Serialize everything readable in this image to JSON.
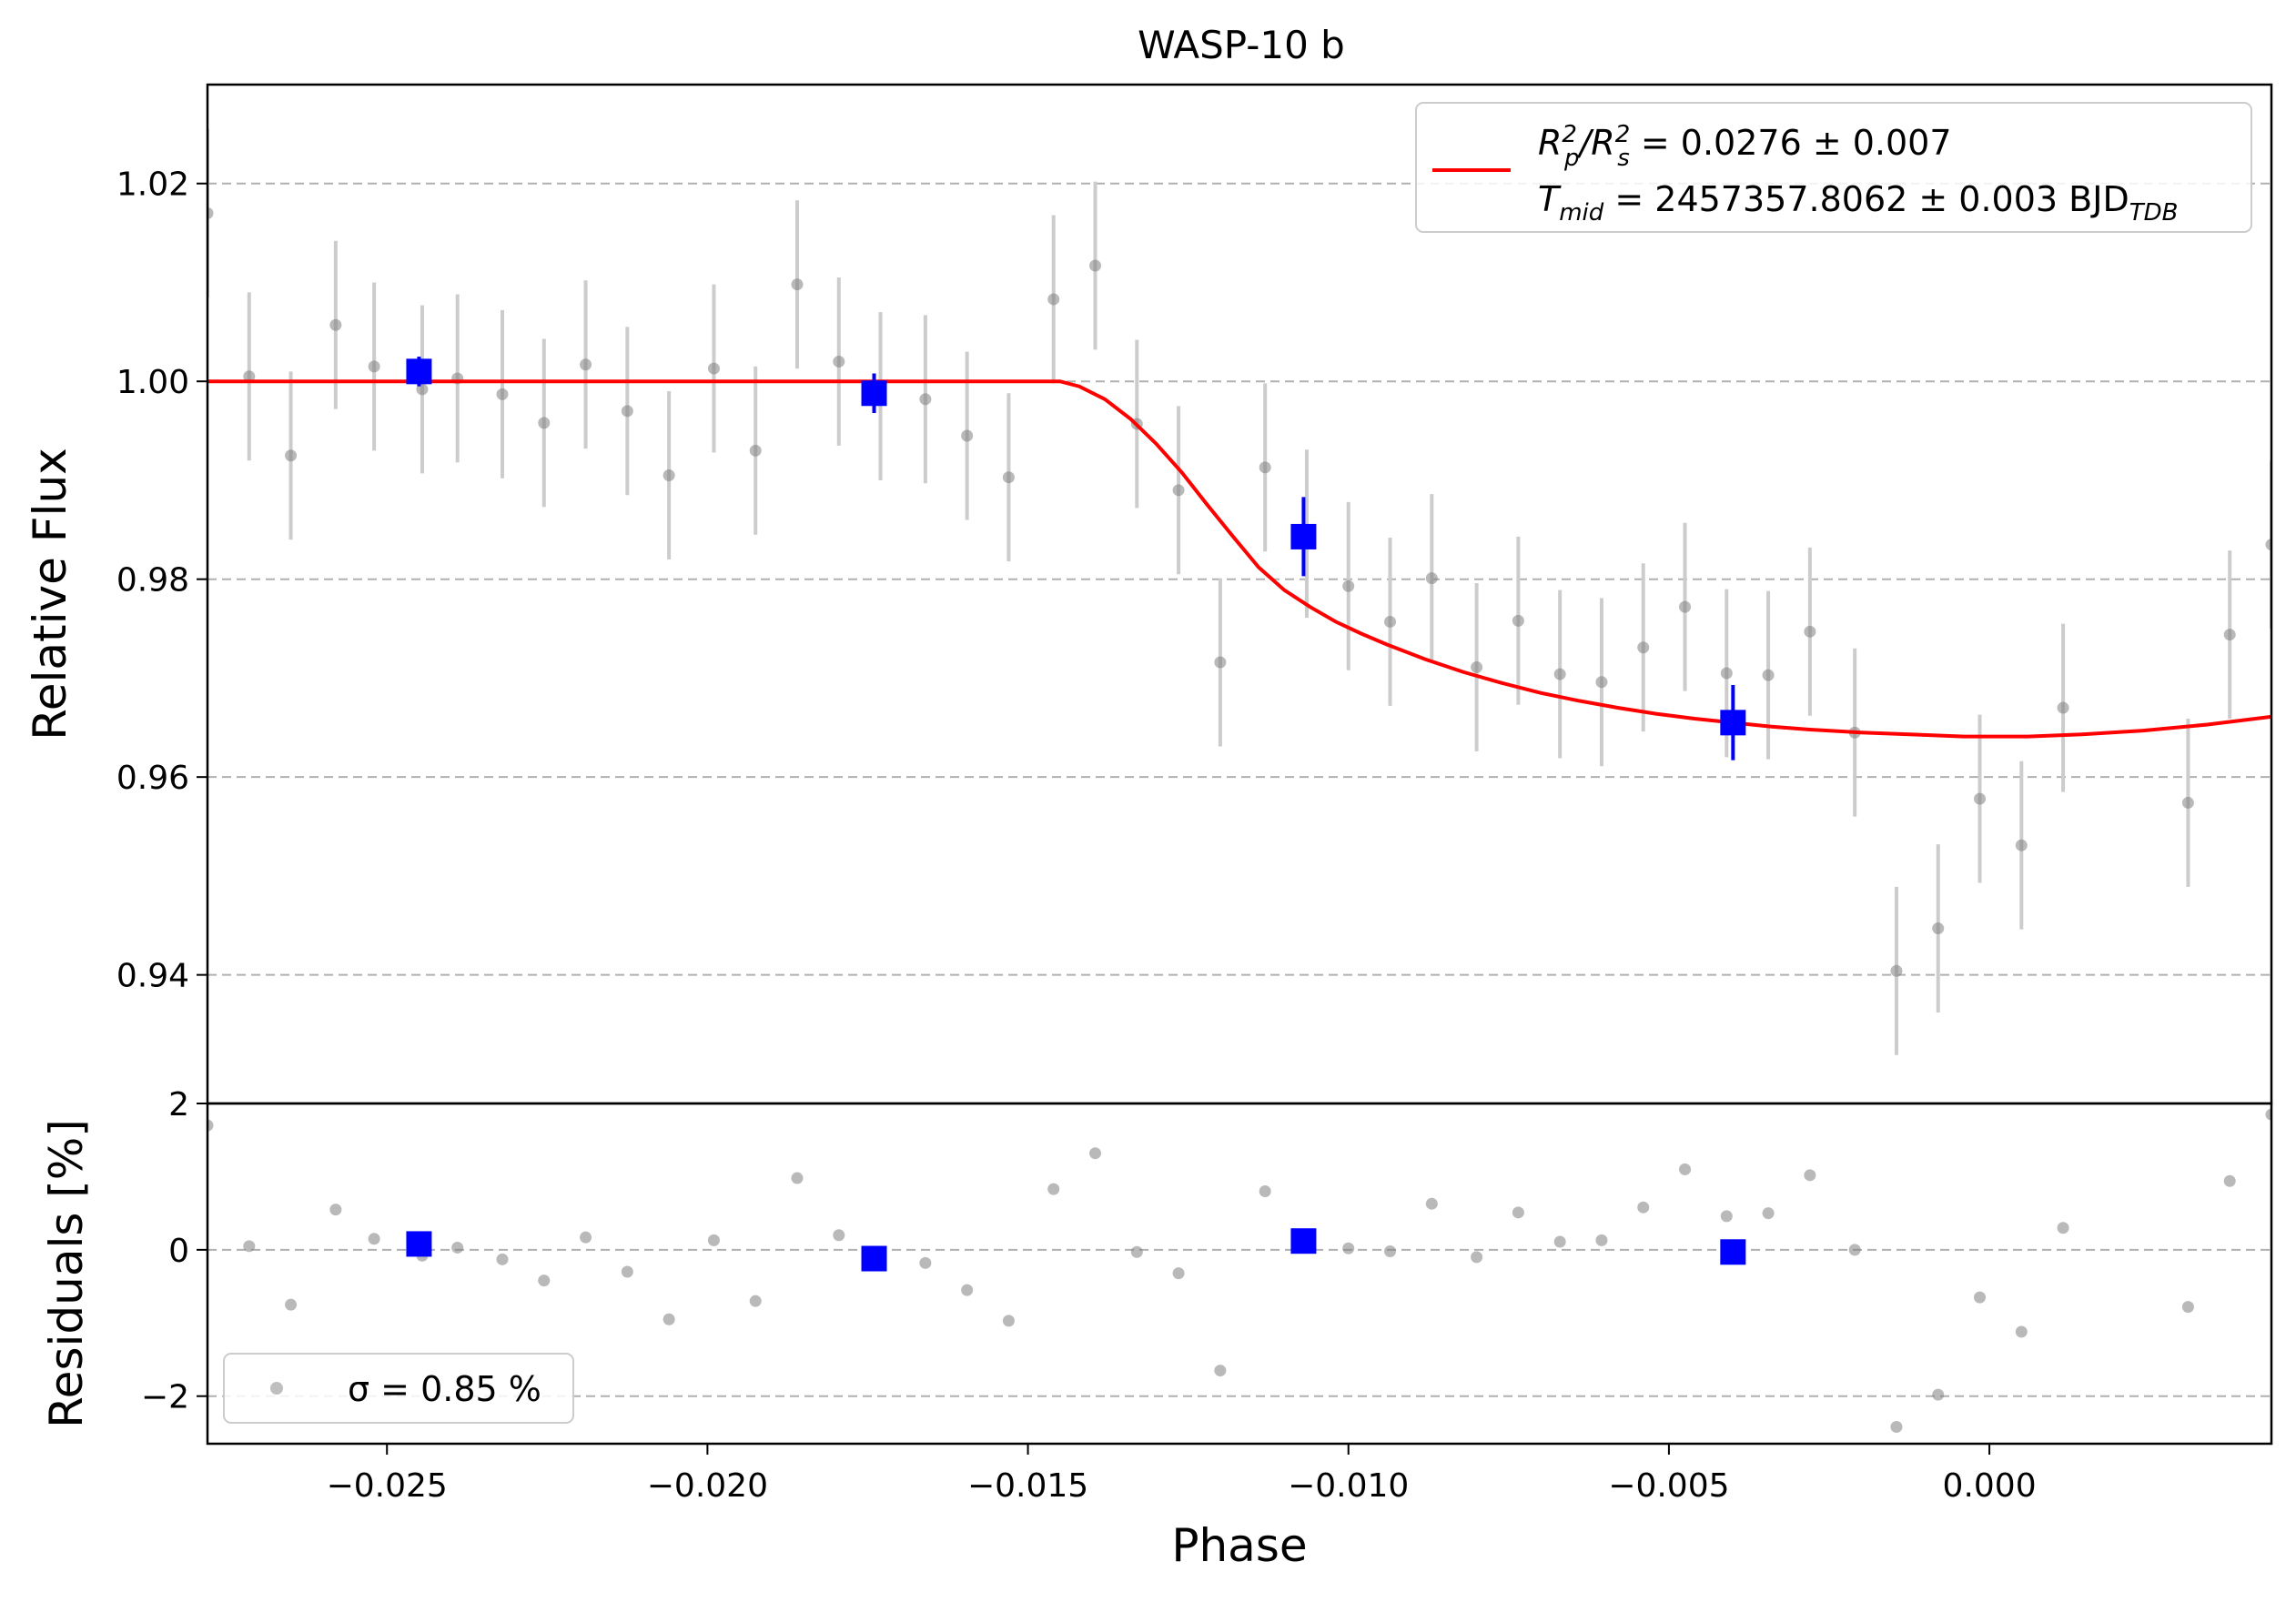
{
  "chart_data": {
    "type": "scatter",
    "title": "WASP-10 b",
    "xlabel": "Phase",
    "ylabel_top": "Relative Flux",
    "ylabel_bottom": "Residuals [%]",
    "xlim": [
      -0.0278,
      0.0044
    ],
    "ylim_top": [
      0.927,
      1.03
    ],
    "ylim_bottom": [
      -2.65,
      2.0
    ],
    "grid": "horizontal dashed",
    "legend_placement": "top-right",
    "legend_bottom_placement": "bottom-left",
    "x_ticks": [
      "−0.025",
      "−0.020",
      "−0.015",
      "−0.010",
      "−0.005",
      "0.000"
    ],
    "x_tick_values": [
      -0.025,
      -0.02,
      -0.015,
      -0.01,
      -0.005,
      0.0
    ],
    "y_ticks_top": [
      "0.94",
      "0.96",
      "0.98",
      "1.00",
      "1.02"
    ],
    "y_tick_values_top": [
      0.94,
      0.96,
      0.98,
      1.0,
      1.02
    ],
    "y_ticks_bottom": [
      "−2",
      "0",
      "2"
    ],
    "y_tick_values_bottom": [
      -2,
      0,
      2
    ],
    "legend": {
      "model_line1_main": "R",
      "model_line1_rest": " = 0.0276 ± 0.007",
      "model_line2_main": "T",
      "model_line2_sub": "mid",
      "model_line2_rest": " = 2457357.8062 ± 0.003 BJD",
      "model_line2_unit_sub": "TDB",
      "residual_label": "σ = 0.85 %"
    },
    "colors": {
      "model": "#ff0000",
      "binned": "#0000ff",
      "data": "#808080",
      "errorbar": "#cccccc",
      "grid": "#b0b0b0"
    },
    "data_points": [
      {
        "x": -0.0278,
        "y": 1.017,
        "e": 0.0085,
        "r": 1.7
      },
      {
        "x": -0.02715,
        "y": 1.0005,
        "e": 0.0085,
        "r": 0.05
      },
      {
        "x": -0.0265,
        "y": 0.9925,
        "e": 0.0085,
        "r": -0.75
      },
      {
        "x": -0.0258,
        "y": 1.0057,
        "e": 0.0085,
        "r": 0.55
      },
      {
        "x": -0.0252,
        "y": 1.0015,
        "e": 0.0085,
        "r": 0.15
      },
      {
        "x": -0.02445,
        "y": 0.9992,
        "e": 0.0085,
        "r": -0.08
      },
      {
        "x": -0.0239,
        "y": 1.0003,
        "e": 0.0085,
        "r": 0.03
      },
      {
        "x": -0.0232,
        "y": 0.9987,
        "e": 0.0085,
        "r": -0.13
      },
      {
        "x": -0.02255,
        "y": 0.9958,
        "e": 0.0085,
        "r": -0.42
      },
      {
        "x": -0.0219,
        "y": 1.0017,
        "e": 0.0085,
        "r": 0.17
      },
      {
        "x": -0.02125,
        "y": 0.997,
        "e": 0.0085,
        "r": -0.3
      },
      {
        "x": -0.0206,
        "y": 0.9905,
        "e": 0.0085,
        "r": -0.95
      },
      {
        "x": -0.0199,
        "y": 1.0013,
        "e": 0.0085,
        "r": 0.13
      },
      {
        "x": -0.01925,
        "y": 0.993,
        "e": 0.0085,
        "r": -0.7
      },
      {
        "x": -0.0186,
        "y": 1.0098,
        "e": 0.0085,
        "r": 0.98
      },
      {
        "x": -0.01795,
        "y": 1.002,
        "e": 0.0085,
        "r": 0.2
      },
      {
        "x": -0.0173,
        "y": 0.9985,
        "e": 0.0085,
        "r": -0.15
      },
      {
        "x": -0.0166,
        "y": 0.9982,
        "e": 0.0085,
        "r": -0.18
      },
      {
        "x": -0.01595,
        "y": 0.9945,
        "e": 0.0085,
        "r": -0.55
      },
      {
        "x": -0.0153,
        "y": 0.9903,
        "e": 0.0085,
        "r": -0.97
      },
      {
        "x": -0.0146,
        "y": 1.0083,
        "e": 0.0085,
        "r": 0.83
      },
      {
        "x": -0.01395,
        "y": 1.0117,
        "e": 0.0085,
        "r": 1.32
      },
      {
        "x": -0.0133,
        "y": 0.9957,
        "e": 0.0085,
        "r": -0.03
      },
      {
        "x": -0.01265,
        "y": 0.989,
        "e": 0.0085,
        "r": -0.32
      },
      {
        "x": -0.012,
        "y": 0.9716,
        "e": 0.0085,
        "r": -1.65
      },
      {
        "x": -0.0113,
        "y": 0.9913,
        "e": 0.0085,
        "r": 0.8
      },
      {
        "x": -0.01065,
        "y": 0.9846,
        "e": 0.0085,
        "r": 0.1
      },
      {
        "x": -0.01,
        "y": 0.9793,
        "e": 0.0085,
        "r": 0.02
      },
      {
        "x": -0.00935,
        "y": 0.9757,
        "e": 0.0085,
        "r": -0.02
      },
      {
        "x": -0.0087,
        "y": 0.9801,
        "e": 0.0085,
        "r": 0.63
      },
      {
        "x": -0.008,
        "y": 0.9711,
        "e": 0.0085,
        "r": -0.1
      },
      {
        "x": -0.00735,
        "y": 0.9758,
        "e": 0.0085,
        "r": 0.51
      },
      {
        "x": -0.0067,
        "y": 0.9704,
        "e": 0.0085,
        "r": 0.11
      },
      {
        "x": -0.00605,
        "y": 0.9696,
        "e": 0.0085,
        "r": 0.13
      },
      {
        "x": -0.0054,
        "y": 0.9731,
        "e": 0.0085,
        "r": 0.58
      },
      {
        "x": -0.00475,
        "y": 0.9772,
        "e": 0.0085,
        "r": 1.1
      },
      {
        "x": -0.0041,
        "y": 0.9705,
        "e": 0.0085,
        "r": 0.46
      },
      {
        "x": -0.00345,
        "y": 0.9703,
        "e": 0.0085,
        "r": 0.5
      },
      {
        "x": -0.0028,
        "y": 0.9747,
        "e": 0.0085,
        "r": 1.02
      },
      {
        "x": -0.0021,
        "y": 0.9645,
        "e": 0.0085,
        "r": 0.0
      },
      {
        "x": -0.00145,
        "y": 0.9404,
        "e": 0.0085,
        "r": -2.42
      },
      {
        "x": -0.0008,
        "y": 0.9447,
        "e": 0.0085,
        "r": -1.98
      },
      {
        "x": -0.00015,
        "y": 0.9578,
        "e": 0.0085,
        "r": -0.65
      },
      {
        "x": 0.0005,
        "y": 0.9531,
        "e": 0.0085,
        "r": -1.12
      },
      {
        "x": 0.00115,
        "y": 0.967,
        "e": 0.0085,
        "r": 0.3
      },
      {
        "x": 0.0031,
        "y": 0.9574,
        "e": 0.0085,
        "r": -0.78
      },
      {
        "x": 0.00375,
        "y": 0.9744,
        "e": 0.0085,
        "r": 0.94
      },
      {
        "x": 0.0044,
        "y": 0.9835,
        "e": 0.0085,
        "r": 1.85
      }
    ],
    "binned_points": [
      {
        "x": -0.0245,
        "y": 1.001,
        "e": 0.0015,
        "r": 0.08
      },
      {
        "x": -0.0174,
        "y": 0.9988,
        "e": 0.002,
        "r": -0.12
      },
      {
        "x": -0.0107,
        "y": 0.9843,
        "e": 0.004,
        "r": 0.12
      },
      {
        "x": -0.004,
        "y": 0.9655,
        "e": 0.0038,
        "r": -0.03
      }
    ],
    "model": {
      "name": "R_p^2/R_s^2 = 0.0276 ± 0.007, T_mid = 2457357.8062 ± 0.003 BJD_TDB",
      "x": [
        -0.0278,
        -0.0145,
        -0.0142,
        -0.0138,
        -0.0134,
        -0.013,
        -0.0126,
        -0.0122,
        -0.0118,
        -0.0114,
        -0.011,
        -0.0106,
        -0.0102,
        -0.0098,
        -0.0094,
        -0.0088,
        -0.0082,
        -0.0076,
        -0.007,
        -0.0064,
        -0.0058,
        -0.0052,
        -0.0046,
        -0.004,
        -0.0034,
        -0.0028,
        -0.002,
        -0.0012,
        -0.0004,
        0.0,
        0.0006,
        0.0014,
        0.0024,
        0.0034,
        0.0044
      ],
      "y": [
        1.0,
        1.0,
        0.9995,
        0.9982,
        0.9962,
        0.9937,
        0.9908,
        0.9875,
        0.9843,
        0.9812,
        0.9789,
        0.9772,
        0.9757,
        0.9745,
        0.9734,
        0.9719,
        0.9706,
        0.9695,
        0.9685,
        0.9677,
        0.967,
        0.9664,
        0.9659,
        0.9655,
        0.9651,
        0.9648,
        0.9645,
        0.9643,
        0.9641,
        0.9641,
        0.9641,
        0.9643,
        0.9647,
        0.9653,
        0.9661
      ]
    }
  }
}
